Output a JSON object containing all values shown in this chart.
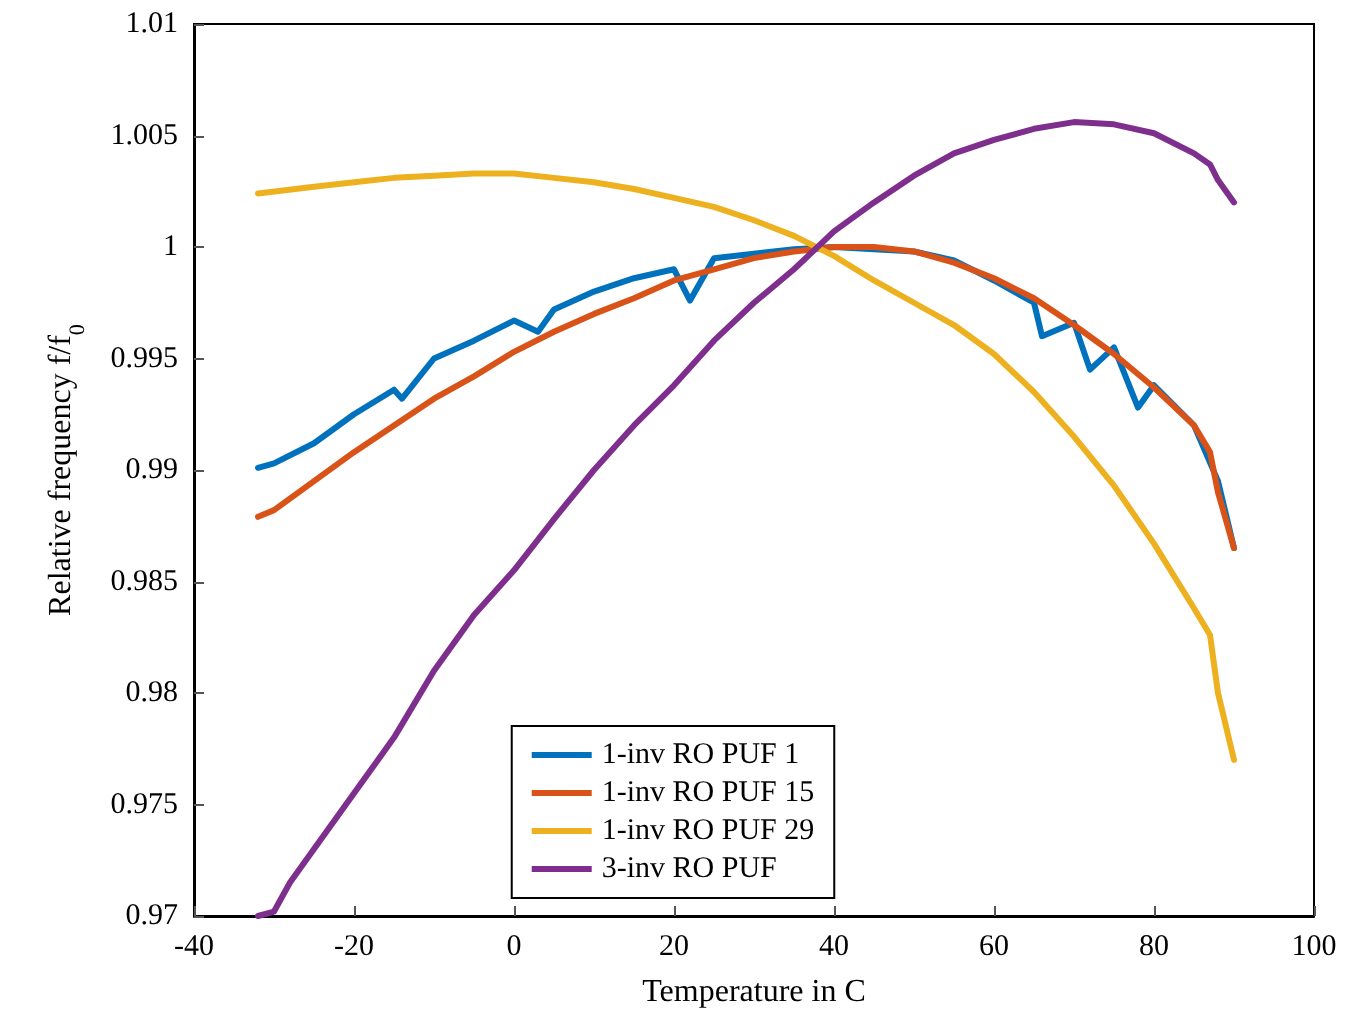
{
  "chart_data": {
    "type": "line",
    "xlabel": "Temperature in C",
    "ylabel": "Relative frequency f/f$_{0}$",
    "xlim": [
      -40,
      100
    ],
    "xticks": [
      -40,
      -20,
      0,
      20,
      40,
      60,
      80,
      100
    ],
    "ylim": [
      0.97,
      1.01
    ],
    "yticks": [
      0.97,
      0.975,
      0.98,
      0.985,
      0.99,
      0.995,
      1,
      1.005,
      1.01
    ],
    "grid": false,
    "legend": "bottom",
    "marker": "none",
    "line_style": "solid",
    "series": [
      {
        "name": "1-inv RO PUF 1",
        "color": "#0072bd",
        "x": [
          -32,
          -30,
          -25,
          -20,
          -15,
          -14,
          -10,
          -5,
          0,
          3,
          5,
          10,
          15,
          20,
          22,
          25,
          30,
          35,
          40,
          45,
          50,
          55,
          60,
          65,
          66,
          70,
          72,
          75,
          78,
          80,
          85,
          88,
          90
        ],
        "values": [
          0.9901,
          0.9903,
          0.9912,
          0.9925,
          0.9936,
          0.9932,
          0.995,
          0.9958,
          0.9967,
          0.9962,
          0.9972,
          0.998,
          0.9986,
          0.999,
          0.9976,
          0.9995,
          0.9997,
          0.9999,
          1.0,
          0.9999,
          0.9998,
          0.9994,
          0.9985,
          0.9975,
          0.996,
          0.9966,
          0.9945,
          0.9955,
          0.9928,
          0.9938,
          0.992,
          0.9895,
          0.9865
        ]
      },
      {
        "name": "1-inv RO PUF 15",
        "color": "#d95319",
        "x": [
          -32,
          -30,
          -25,
          -20,
          -15,
          -10,
          -5,
          0,
          5,
          10,
          15,
          20,
          25,
          30,
          35,
          40,
          45,
          50,
          55,
          60,
          65,
          70,
          75,
          80,
          85,
          87,
          88,
          90
        ],
        "values": [
          0.9879,
          0.9882,
          0.9895,
          0.9908,
          0.992,
          0.9932,
          0.9942,
          0.9953,
          0.9962,
          0.997,
          0.9977,
          0.9985,
          0.999,
          0.9995,
          0.9998,
          1.0,
          1.0,
          0.9998,
          0.9993,
          0.9986,
          0.9977,
          0.9965,
          0.9952,
          0.9937,
          0.992,
          0.9908,
          0.989,
          0.9865
        ]
      },
      {
        "name": "1-inv RO PUF 29",
        "color": "#edb120",
        "x": [
          -32,
          -25,
          -20,
          -15,
          -10,
          -5,
          0,
          5,
          10,
          15,
          20,
          25,
          30,
          35,
          40,
          45,
          50,
          55,
          60,
          65,
          70,
          75,
          80,
          85,
          87,
          88,
          90
        ],
        "values": [
          1.0024,
          1.0027,
          1.0029,
          1.0031,
          1.0032,
          1.0033,
          1.0033,
          1.0031,
          1.0029,
          1.0026,
          1.0022,
          1.0018,
          1.0012,
          1.0005,
          0.9996,
          0.9985,
          0.9975,
          0.9965,
          0.9952,
          0.9935,
          0.9915,
          0.9893,
          0.9867,
          0.9838,
          0.9826,
          0.98,
          0.977
        ]
      },
      {
        "name": "3-inv RO PUF",
        "color": "#7e2f8e",
        "x": [
          -32,
          -30,
          -28,
          -25,
          -20,
          -15,
          -10,
          -5,
          0,
          5,
          10,
          15,
          20,
          25,
          30,
          35,
          40,
          45,
          50,
          55,
          60,
          65,
          70,
          75,
          80,
          85,
          87,
          88,
          90
        ],
        "values": [
          0.97,
          0.9702,
          0.9715,
          0.973,
          0.9755,
          0.978,
          0.981,
          0.9835,
          0.9855,
          0.9878,
          0.99,
          0.992,
          0.9938,
          0.9958,
          0.9975,
          0.999,
          1.0007,
          1.002,
          1.0032,
          1.0042,
          1.0048,
          1.0053,
          1.0056,
          1.0055,
          1.0051,
          1.0042,
          1.0037,
          1.003,
          1.002
        ]
      }
    ]
  }
}
